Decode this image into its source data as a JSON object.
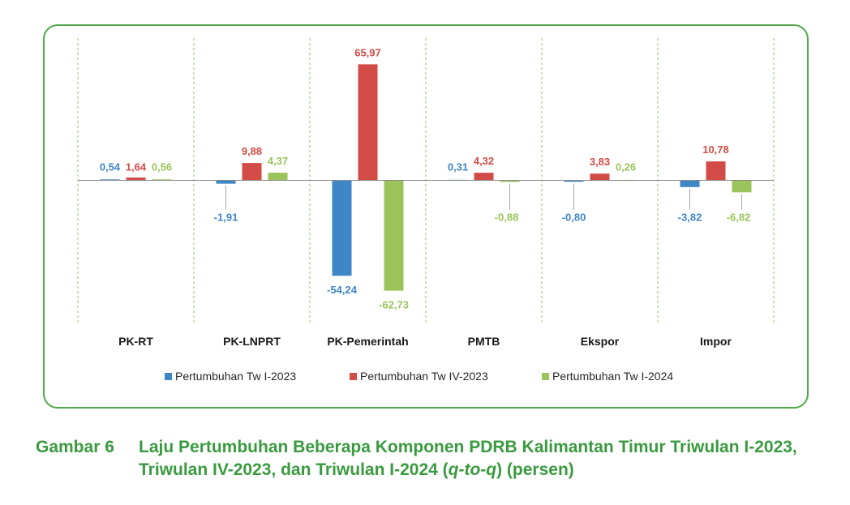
{
  "chart_data": {
    "type": "bar",
    "categories": [
      "PK-RT",
      "PK-LNPRT",
      "PK-Pemerintah",
      "PMTB",
      "Ekspor",
      "Impor"
    ],
    "series": [
      {
        "name": "Pertumbuhan Tw I-2023",
        "color": "#3e86c6",
        "values": [
          0.54,
          -1.91,
          -54.24,
          0.31,
          -0.8,
          -3.82
        ],
        "labels": [
          "0,54",
          "-1,91",
          "-54,24",
          "0,31",
          "-0,80",
          "-3,82"
        ]
      },
      {
        "name": "Pertumbuhan Tw IV-2023",
        "color": "#d34b46",
        "values": [
          1.64,
          9.88,
          65.97,
          4.32,
          3.83,
          10.78
        ],
        "labels": [
          "1,64",
          "9,88",
          "65,97",
          "4,32",
          "3,83",
          "10,78"
        ]
      },
      {
        "name": "Pertumbuhan Tw I-2024",
        "color": "#9ac35a",
        "values": [
          0.56,
          4.37,
          -62.73,
          -0.88,
          0.26,
          -6.82
        ],
        "labels": [
          "0,56",
          "4,37",
          "-62,73",
          "-0,88",
          "0,26",
          "-6,82"
        ]
      }
    ],
    "ylim": [
      -80,
      70
    ],
    "grid": false,
    "category_separators": "dashed-green",
    "legend_position": "bottom"
  },
  "caption": {
    "label": "Gambar 6",
    "text_part1": "Laju Pertumbuhan Beberapa Komponen PDRB Kalimantan Timur Triwulan I-2023, Triwulan IV-2023, dan Triwulan I-2024 (",
    "text_italic": "q-to-q",
    "text_part2": ") (persen)"
  },
  "colors": {
    "frame": "#4fa84a",
    "caption": "#3a9a3f",
    "separator": "#8cc56a",
    "axis": "#8c8c8c"
  }
}
